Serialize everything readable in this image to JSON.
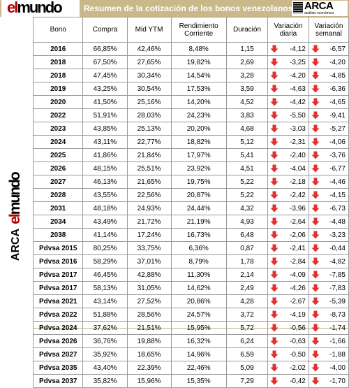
{
  "header": {
    "title": "Resumen de la cotización de los bonos venezolanos",
    "logo_left": "elmundo",
    "logo_right": "ARCA",
    "logo_right_sub": "análisis económico"
  },
  "columns": [
    "Bono",
    "Compra",
    "Mid YTM",
    "Rendimiento Corriente",
    "Duración",
    "Variación diaria",
    "Variación semanal"
  ],
  "colors": {
    "header_bar": "#c9b98a",
    "arrow_down": "#e03030"
  },
  "rows": [
    {
      "bono": "2016",
      "compra": "66,85%",
      "mid": "42,46%",
      "rend": "8,48%",
      "dur": "1,15",
      "vd": "-4,12",
      "vs": "-6,57"
    },
    {
      "bono": "2018",
      "compra": "67,50%",
      "mid": "27,65%",
      "rend": "19,82%",
      "dur": "2,69",
      "vd": "-3,25",
      "vs": "-4,20"
    },
    {
      "bono": "2018",
      "compra": "47,45%",
      "mid": "30,34%",
      "rend": "14,54%",
      "dur": "3,28",
      "vd": "-4,20",
      "vs": "-4,85"
    },
    {
      "bono": "2019",
      "compra": "43,25%",
      "mid": "30,54%",
      "rend": "17,53%",
      "dur": "3,59",
      "vd": "-4,63",
      "vs": "-6,36"
    },
    {
      "bono": "2020",
      "compra": "41,50%",
      "mid": "25,16%",
      "rend": "14,20%",
      "dur": "4,52",
      "vd": "-4,42",
      "vs": "-4,65"
    },
    {
      "bono": "2022",
      "compra": "51,91%",
      "mid": "28,03%",
      "rend": "24,23%",
      "dur": "3,83",
      "vd": "-5,50",
      "vs": "-9,41"
    },
    {
      "bono": "2023",
      "compra": "43,85%",
      "mid": "25,13%",
      "rend": "20,20%",
      "dur": "4,68",
      "vd": "-3,03",
      "vs": "-5,27"
    },
    {
      "bono": "2024",
      "compra": "43,11%",
      "mid": "22,77%",
      "rend": "18,82%",
      "dur": "5,12",
      "vd": "-2,31",
      "vs": "-4,06"
    },
    {
      "bono": "2025",
      "compra": "41,86%",
      "mid": "21,84%",
      "rend": "17,97%",
      "dur": "5,41",
      "vd": "-2,40",
      "vs": "-3,76"
    },
    {
      "bono": "2026",
      "compra": "48,15%",
      "mid": "25,51%",
      "rend": "23,92%",
      "dur": "4,51",
      "vd": "-4,04",
      "vs": "-6,77"
    },
    {
      "bono": "2027",
      "compra": "46,13%",
      "mid": "21,65%",
      "rend": "19,75%",
      "dur": "5,22",
      "vd": "-2,18",
      "vs": "-4,46"
    },
    {
      "bono": "2028",
      "compra": "43,55%",
      "mid": "22,56%",
      "rend": "20,87%",
      "dur": "5,22",
      "vd": "-2,42",
      "vs": "-4,15"
    },
    {
      "bono": "2031",
      "compra": "48,18%",
      "mid": "24,93%",
      "rend": "24,44%",
      "dur": "4,32",
      "vd": "-3,96",
      "vs": "-6,73"
    },
    {
      "bono": "2034",
      "compra": "43,49%",
      "mid": "21,72%",
      "rend": "21,19%",
      "dur": "4,93",
      "vd": "-2,64",
      "vs": "-4,48"
    },
    {
      "bono": "2038",
      "compra": "41,14%",
      "mid": "17,24%",
      "rend": "16,73%",
      "dur": "6,48",
      "vd": "-2,06",
      "vs": "-3,23"
    },
    {
      "bono": "Pdvsa 2015",
      "compra": "80,25%",
      "mid": "33,75%",
      "rend": "6,36%",
      "dur": "0,87",
      "vd": "-2,41",
      "vs": "-0,44"
    },
    {
      "bono": "Pdvsa 2016",
      "compra": "58,29%",
      "mid": "37,01%",
      "rend": "8,79%",
      "dur": "1,78",
      "vd": "-2,84",
      "vs": "-4,82"
    },
    {
      "bono": "Pdvsa 2017",
      "compra": "46,45%",
      "mid": "42,88%",
      "rend": "11,30%",
      "dur": "2,14",
      "vd": "-4,09",
      "vs": "-7,85"
    },
    {
      "bono": "Pdvsa 2017",
      "compra": "58,13%",
      "mid": "31,05%",
      "rend": "14,62%",
      "dur": "2,49",
      "vd": "-4,26",
      "vs": "-7,83"
    },
    {
      "bono": "Pdvsa 2021",
      "compra": "43,14%",
      "mid": "27,52%",
      "rend": "20,86%",
      "dur": "4,28",
      "vd": "-2,67",
      "vs": "-5,39"
    },
    {
      "bono": "Pdvsa 2022",
      "compra": "51,88%",
      "mid": "28,56%",
      "rend": "24,57%",
      "dur": "3,72",
      "vd": "-4,19",
      "vs": "-8,73"
    },
    {
      "bono": "Pdvsa 2024",
      "compra": "37,62%",
      "mid": "21,51%",
      "rend": "15,95%",
      "dur": "5,72",
      "vd": "-0,56",
      "vs": "-1,74"
    },
    {
      "bono": "Pdvsa 2026",
      "compra": "36,76%",
      "mid": "19,88%",
      "rend": "16,32%",
      "dur": "6,24",
      "vd": "-0,63",
      "vs": "-1,66"
    },
    {
      "bono": "Pdvsa 2027",
      "compra": "35,92%",
      "mid": "18,65%",
      "rend": "14,96%",
      "dur": "6,59",
      "vd": "-0,50",
      "vs": "-1,88"
    },
    {
      "bono": "Pdvsa 2035",
      "compra": "43,40%",
      "mid": "22,39%",
      "rend": "22,46%",
      "dur": "5,09",
      "vd": "-2,02",
      "vs": "-4,00"
    },
    {
      "bono": "Pdvsa 2037",
      "compra": "35,82%",
      "mid": "15,96%",
      "rend": "15,35%",
      "dur": "7,29",
      "vd": "-0,42",
      "vs": "-1,70"
    }
  ]
}
